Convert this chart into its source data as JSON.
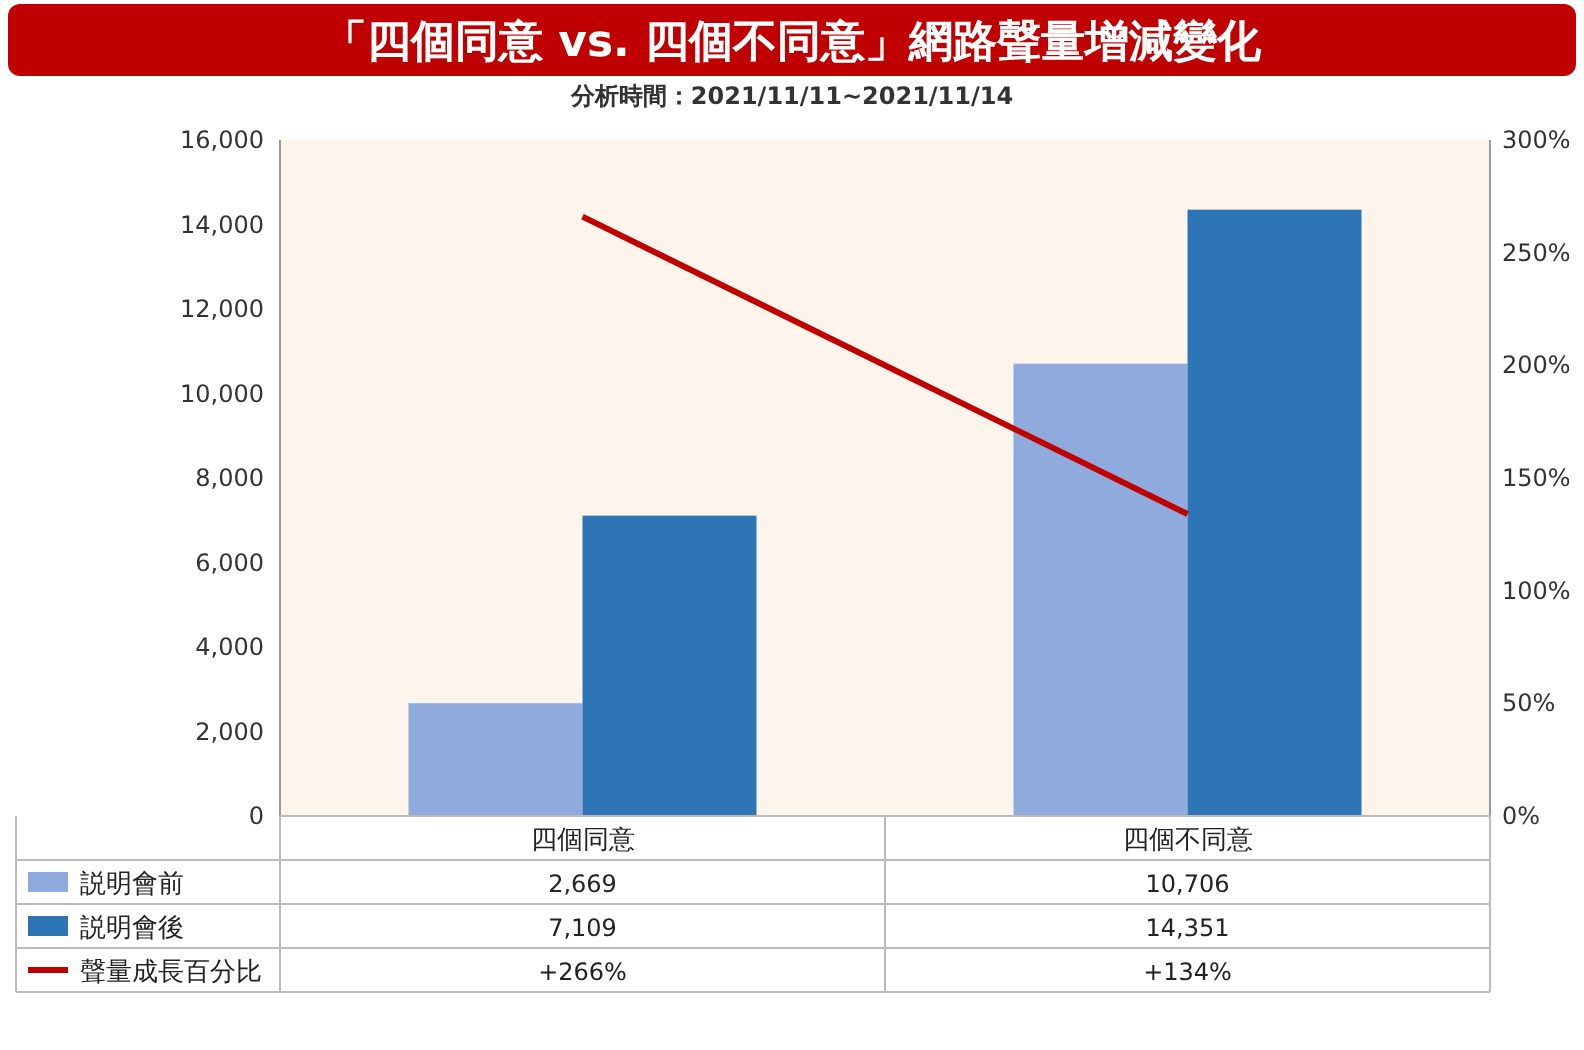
{
  "chart_data": {
    "type": "bar",
    "title": "「四個同意 vs. 四個不同意」網路聲量增減變化",
    "subtitle": "分析時間：2021/11/11~2021/11/14",
    "categories": [
      "四個同意",
      "四個不同意"
    ],
    "series": [
      {
        "name": "説明會前",
        "color": "#8faadc",
        "values": [
          2669,
          10706
        ],
        "value_labels": [
          "2,669",
          "10,706"
        ]
      },
      {
        "name": "説明會後",
        "color": "#2e75b6",
        "values": [
          7109,
          14351
        ],
        "value_labels": [
          "7,109",
          "14,351"
        ]
      },
      {
        "name": "聲量成長百分比",
        "type": "line",
        "axis": "y2",
        "color": "#c00000",
        "values": [
          266,
          134
        ],
        "value_labels": [
          "+266%",
          "+134%"
        ]
      }
    ],
    "ylim": [
      0,
      16000
    ],
    "yticks": [
      0,
      {
        "value": 2000,
        "label": "2,000"
      },
      {
        "value": 4000,
        "label": "4,000"
      },
      {
        "value": 6000,
        "label": "6,000"
      },
      {
        "value": 8000,
        "label": "8,000"
      },
      {
        "value": 10000,
        "label": "10,000"
      },
      {
        "value": 12000,
        "label": "12,000"
      },
      {
        "value": 14000,
        "label": "14,000"
      },
      {
        "value": 16000,
        "label": "16,000"
      }
    ],
    "y2lim": [
      0,
      300
    ],
    "y2ticks": [
      {
        "value": 0,
        "label": "0%"
      },
      {
        "value": 50,
        "label": "50%"
      },
      {
        "value": 100,
        "label": "100%"
      },
      {
        "value": 150,
        "label": "150%"
      },
      {
        "value": 200,
        "label": "200%"
      },
      {
        "value": 250,
        "label": "250%"
      },
      {
        "value": 300,
        "label": "300%"
      }
    ],
    "legend": "bottom",
    "grid": false
  }
}
